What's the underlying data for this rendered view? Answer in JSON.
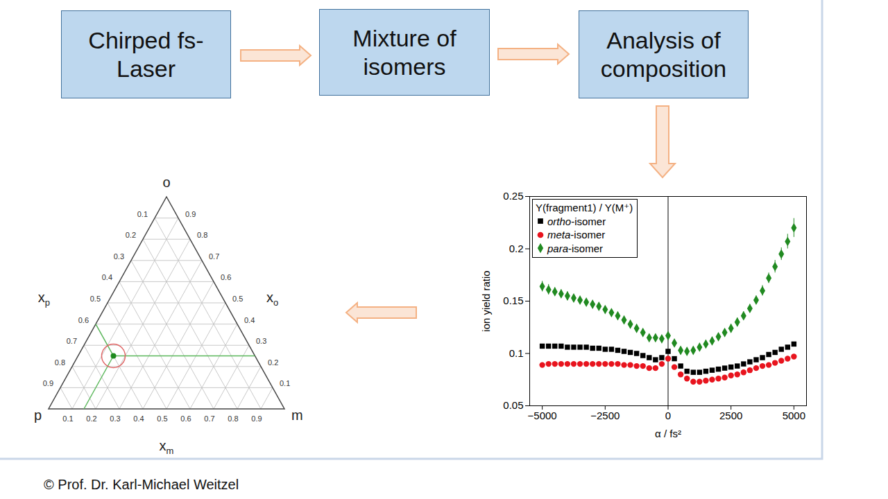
{
  "flow": {
    "boxes": [
      {
        "lines": [
          "Chirped fs-",
          "Laser"
        ]
      },
      {
        "lines": [
          "Mixture of",
          "isomers"
        ]
      },
      {
        "lines": [
          "Analysis of",
          "composition"
        ]
      }
    ]
  },
  "chart_data": {
    "type": "scatter",
    "x_label": "α / fs²",
    "y_label": "ion yield ratio",
    "legend_title": "Y(fragment1) / Y(M⁺)",
    "legend": "top-left",
    "xlim": [
      -5500,
      5500
    ],
    "xticks": [
      {
        "value": -5000,
        "label": "−5000"
      },
      {
        "value": -2500,
        "label": "−2500"
      },
      0,
      2500,
      5000
    ],
    "ylim": [
      0.05,
      0.25
    ],
    "yticks": [
      0.05,
      0.1,
      0.15,
      0.2,
      0.25
    ],
    "rule_x": 0,
    "x": [
      -5000,
      -4750,
      -4500,
      -4250,
      -4000,
      -3750,
      -3500,
      -3250,
      -3000,
      -2750,
      -2500,
      -2250,
      -2000,
      -1750,
      -1500,
      -1250,
      -1000,
      -750,
      -500,
      -250,
      0,
      250,
      500,
      750,
      1000,
      1250,
      1500,
      1750,
      2000,
      2250,
      2500,
      2750,
      3000,
      3250,
      3500,
      3750,
      4000,
      4250,
      4500,
      4750,
      5000
    ],
    "series": [
      {
        "name": "ortho-isomer",
        "color": "#000000",
        "marker": "square",
        "values": [
          0.107,
          0.107,
          0.107,
          0.107,
          0.106,
          0.106,
          0.106,
          0.106,
          0.105,
          0.105,
          0.104,
          0.104,
          0.103,
          0.102,
          0.101,
          0.1,
          0.098,
          0.096,
          0.094,
          0.096,
          0.102,
          0.095,
          0.088,
          0.083,
          0.082,
          0.082,
          0.083,
          0.084,
          0.085,
          0.086,
          0.087,
          0.088,
          0.09,
          0.092,
          0.094,
          0.096,
          0.099,
          0.101,
          0.104,
          0.106,
          0.109
        ]
      },
      {
        "name": "meta-isomer",
        "color": "#e8141e",
        "marker": "circle",
        "values": [
          0.089,
          0.09,
          0.09,
          0.09,
          0.09,
          0.09,
          0.09,
          0.09,
          0.09,
          0.09,
          0.09,
          0.09,
          0.09,
          0.089,
          0.089,
          0.088,
          0.088,
          0.086,
          0.086,
          0.09,
          0.095,
          0.087,
          0.08,
          0.076,
          0.073,
          0.073,
          0.074,
          0.075,
          0.076,
          0.077,
          0.079,
          0.08,
          0.082,
          0.084,
          0.086,
          0.088,
          0.089,
          0.091,
          0.093,
          0.095,
          0.097
        ]
      },
      {
        "name": "para-isomer",
        "color": "#218a21",
        "marker": "diamond",
        "values": [
          0.164,
          0.161,
          0.159,
          0.157,
          0.155,
          0.153,
          0.151,
          0.149,
          0.147,
          0.145,
          0.142,
          0.139,
          0.136,
          0.132,
          0.128,
          0.124,
          0.12,
          0.115,
          0.115,
          0.114,
          0.117,
          0.11,
          0.103,
          0.102,
          0.103,
          0.106,
          0.109,
          0.112,
          0.116,
          0.12,
          0.124,
          0.13,
          0.136,
          0.143,
          0.151,
          0.16,
          0.172,
          0.183,
          0.195,
          0.207,
          0.22
        ],
        "errors": [
          0.005,
          0.005,
          0.004,
          0.004,
          0.004,
          0.003,
          0.003,
          0.003,
          0.003,
          0.003,
          0.003,
          0.003,
          0.003,
          0.003,
          0.003,
          0.003,
          0.003,
          0.003,
          0.003,
          0.003,
          0.003,
          0.003,
          0.003,
          0.003,
          0.003,
          0.003,
          0.003,
          0.003,
          0.003,
          0.003,
          0.004,
          0.004,
          0.004,
          0.004,
          0.004,
          0.005,
          0.005,
          0.006,
          0.006,
          0.007,
          0.009
        ]
      }
    ]
  },
  "ternary": {
    "corners": {
      "top": "o",
      "left": "p",
      "right": "m"
    },
    "axes": [
      {
        "symbol": "x",
        "index": "p",
        "side": "left"
      },
      {
        "symbol": "x",
        "index": "o",
        "side": "right"
      },
      {
        "symbol": "x",
        "index": "m",
        "side": "bottom"
      }
    ],
    "ticks": [
      0.1,
      0.2,
      0.3,
      0.4,
      0.5,
      0.6,
      0.7,
      0.8,
      0.9
    ],
    "point": {
      "p": 0.6,
      "o": 0.25,
      "m": 0.15
    }
  },
  "credit": "© Prof. Dr. Karl-Michael Weitzel"
}
